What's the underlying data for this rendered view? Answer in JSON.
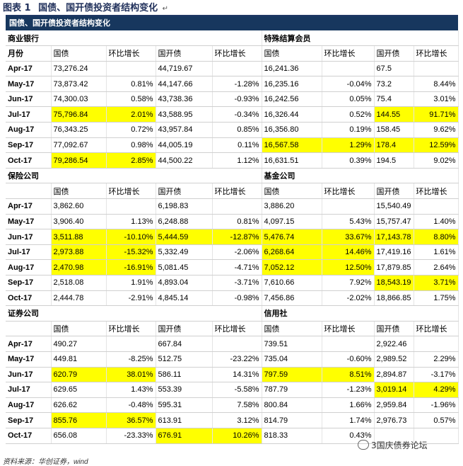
{
  "figure": {
    "label": "图表 1",
    "title": "国债、国开债投资者结构变化",
    "header": "国债、国开债投资者结构变化"
  },
  "sections": [
    {
      "left_name": "商业银行",
      "right_name": "特殊结算会员",
      "head": [
        "月份",
        "国债",
        "环比增长",
        "国开债",
        "环比增长",
        "国债",
        "环比增长",
        "国开债",
        "环比增长"
      ],
      "rows": [
        {
          "cells": [
            "Apr-17",
            "73,276.24",
            "",
            "44,719.67",
            "",
            "16,241.36",
            "",
            "67.5",
            ""
          ],
          "hl": []
        },
        {
          "cells": [
            "May-17",
            "73,873.42",
            "0.81%",
            "44,147.66",
            "-1.28%",
            "16,235.16",
            "-0.04%",
            "73.2",
            "8.44%"
          ],
          "hl": []
        },
        {
          "cells": [
            "Jun-17",
            "74,300.03",
            "0.58%",
            "43,738.36",
            "-0.93%",
            "16,242.56",
            "0.05%",
            "75.4",
            "3.01%"
          ],
          "hl": []
        },
        {
          "cells": [
            "Jul-17",
            "75,796.84",
            "2.01%",
            "43,588.95",
            "-0.34%",
            "16,326.44",
            "0.52%",
            "144.55",
            "91.71%"
          ],
          "hl": [
            1,
            2,
            7,
            8
          ]
        },
        {
          "cells": [
            "Aug-17",
            "76,343.25",
            "0.72%",
            "43,957.84",
            "0.85%",
            "16,356.80",
            "0.19%",
            "158.45",
            "9.62%"
          ],
          "hl": []
        },
        {
          "cells": [
            "Sep-17",
            "77,092.67",
            "0.98%",
            "44,005.19",
            "0.11%",
            "16,567.58",
            "1.29%",
            "178.4",
            "12.59%"
          ],
          "hl": [
            5,
            6,
            7,
            8
          ]
        },
        {
          "cells": [
            "Oct-17",
            "79,286.54",
            "2.85%",
            "44,500.22",
            "1.12%",
            "16,631.51",
            "0.39%",
            "194.5",
            "9.02%"
          ],
          "hl": [
            1,
            2
          ]
        }
      ]
    },
    {
      "left_name": "保险公司",
      "right_name": "基金公司",
      "head": [
        "",
        "国债",
        "环比增长",
        "国开债",
        "环比增长",
        "国债",
        "环比增长",
        "国开债",
        "环比增长"
      ],
      "rows": [
        {
          "cells": [
            "Apr-17",
            "3,862.60",
            "",
            "6,198.83",
            "",
            "3,886.20",
            "",
            "15,540.49",
            ""
          ],
          "hl": []
        },
        {
          "cells": [
            "May-17",
            "3,906.40",
            "1.13%",
            "6,248.88",
            "0.81%",
            "4,097.15",
            "5.43%",
            "15,757.47",
            "1.40%"
          ],
          "hl": []
        },
        {
          "cells": [
            "Jun-17",
            "3,511.88",
            "-10.10%",
            "5,444.59",
            "-12.87%",
            "5,476.74",
            "33.67%",
            "17,143.78",
            "8.80%"
          ],
          "hl": [
            1,
            2,
            3,
            4,
            5,
            6,
            7,
            8
          ]
        },
        {
          "cells": [
            "Jul-17",
            "2,973.88",
            "-15.32%",
            "5,332.49",
            "-2.06%",
            "6,268.64",
            "14.46%",
            "17,419.16",
            "1.61%"
          ],
          "hl": [
            1,
            2,
            5,
            6
          ]
        },
        {
          "cells": [
            "Aug-17",
            "2,470.98",
            "-16.91%",
            "5,081.45",
            "-4.71%",
            "7,052.12",
            "12.50%",
            "17,879.85",
            "2.64%"
          ],
          "hl": [
            1,
            2,
            5,
            6
          ]
        },
        {
          "cells": [
            "Sep-17",
            "2,518.08",
            "1.91%",
            "4,893.04",
            "-3.71%",
            "7,610.66",
            "7.92%",
            "18,543.19",
            "3.71%"
          ],
          "hl": [
            7,
            8
          ]
        },
        {
          "cells": [
            "Oct-17",
            "2,444.78",
            "-2.91%",
            "4,845.14",
            "-0.98%",
            "7,456.86",
            "-2.02%",
            "18,866.85",
            "1.75%"
          ],
          "hl": []
        }
      ]
    },
    {
      "left_name": "证券公司",
      "right_name": "信用社",
      "head": [
        "",
        "国债",
        "环比增长",
        "国开债",
        "环比增长",
        "国债",
        "环比增长",
        "国开债",
        "环比增长"
      ],
      "rows": [
        {
          "cells": [
            "Apr-17",
            "490.27",
            "",
            "667.84",
            "",
            "739.51",
            "",
            "2,922.46",
            ""
          ],
          "hl": []
        },
        {
          "cells": [
            "May-17",
            "449.81",
            "-8.25%",
            "512.75",
            "-23.22%",
            "735.04",
            "-0.60%",
            "2,989.52",
            "2.29%"
          ],
          "hl": []
        },
        {
          "cells": [
            "Jun-17",
            "620.79",
            "38.01%",
            "586.11",
            "14.31%",
            "797.59",
            "8.51%",
            "2,894.87",
            "-3.17%"
          ],
          "hl": [
            1,
            2,
            5,
            6
          ]
        },
        {
          "cells": [
            "Jul-17",
            "629.65",
            "1.43%",
            "553.39",
            "-5.58%",
            "787.79",
            "-1.23%",
            "3,019.14",
            "4.29%"
          ],
          "hl": [
            7,
            8
          ]
        },
        {
          "cells": [
            "Aug-17",
            "626.62",
            "-0.48%",
            "595.31",
            "7.58%",
            "800.84",
            "1.66%",
            "2,959.84",
            "-1.96%"
          ],
          "hl": []
        },
        {
          "cells": [
            "Sep-17",
            "855.76",
            "36.57%",
            "613.91",
            "3.12%",
            "814.79",
            "1.74%",
            "2,976.73",
            "0.57%"
          ],
          "hl": [
            1,
            2
          ]
        },
        {
          "cells": [
            "Oct-17",
            "656.08",
            "-23.33%",
            "676.91",
            "10.26%",
            "818.33",
            "0.43%",
            "",
            ""
          ],
          "hl": [
            3,
            4
          ]
        }
      ]
    }
  ],
  "source": "资料来源：华创证券，wind",
  "watermark": "国庆债券论坛",
  "page_number": "3"
}
